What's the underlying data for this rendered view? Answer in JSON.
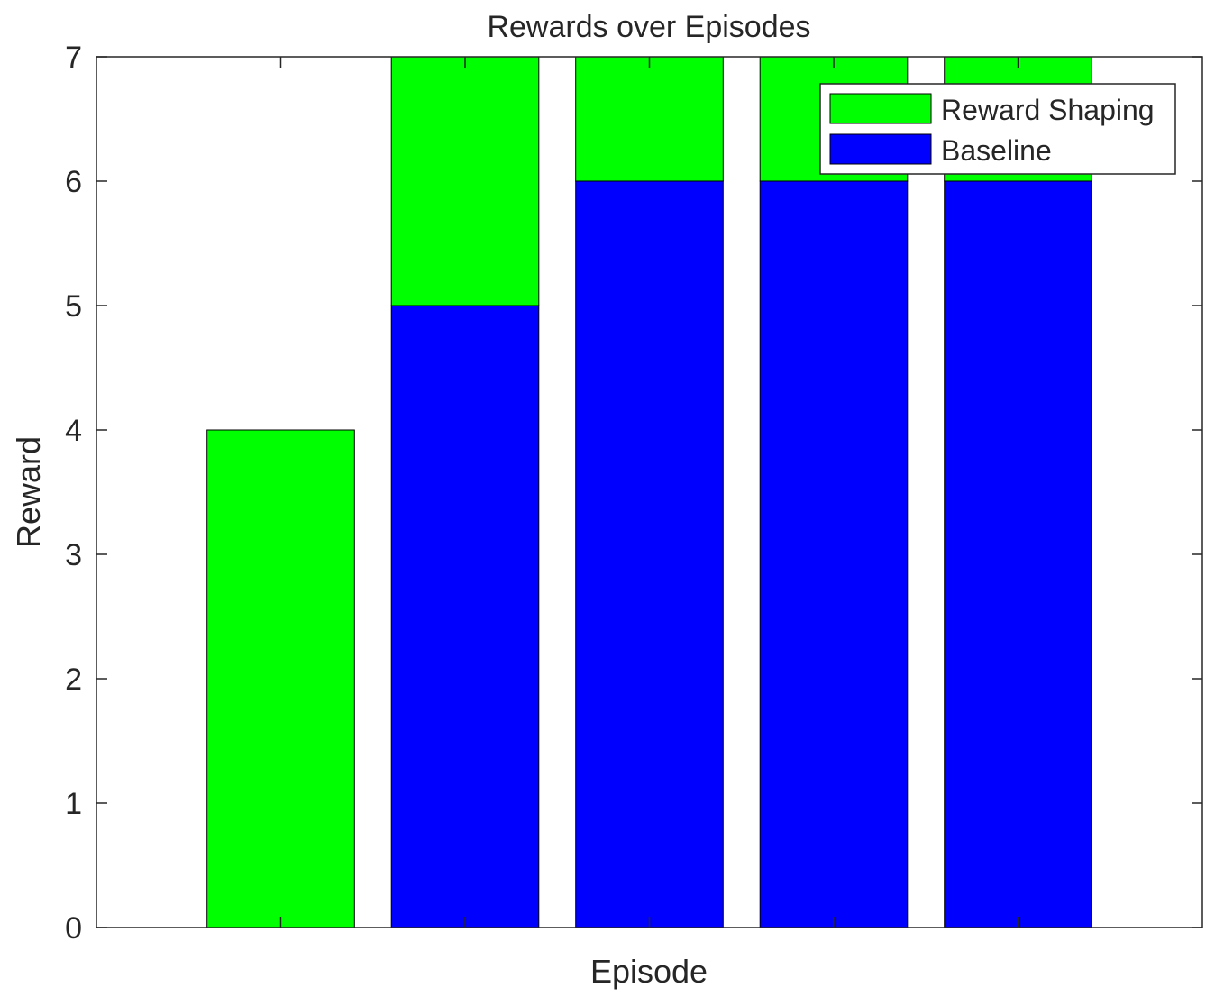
{
  "chart_data": {
    "type": "bar",
    "stacked": true,
    "title": "Rewards over Episodes",
    "xlabel": "Episode",
    "ylabel": "Reward",
    "ylim": [
      0,
      7
    ],
    "yticks": [
      "0",
      "1",
      "2",
      "3",
      "4",
      "5",
      "6",
      "7"
    ],
    "grid": false,
    "legend_position": "top-right",
    "categories": [
      "",
      "",
      "",
      "",
      ""
    ],
    "series": [
      {
        "name": "Baseline",
        "color": "#0000ff",
        "values": [
          0,
          5,
          6,
          6,
          6
        ]
      },
      {
        "name": "Reward Shaping",
        "color": "#00ff00",
        "values": [
          4,
          2,
          1,
          1,
          1
        ]
      }
    ],
    "legend": [
      {
        "label": "Reward Shaping",
        "color": "#00ff00"
      },
      {
        "label": "Baseline",
        "color": "#0000ff"
      }
    ]
  }
}
